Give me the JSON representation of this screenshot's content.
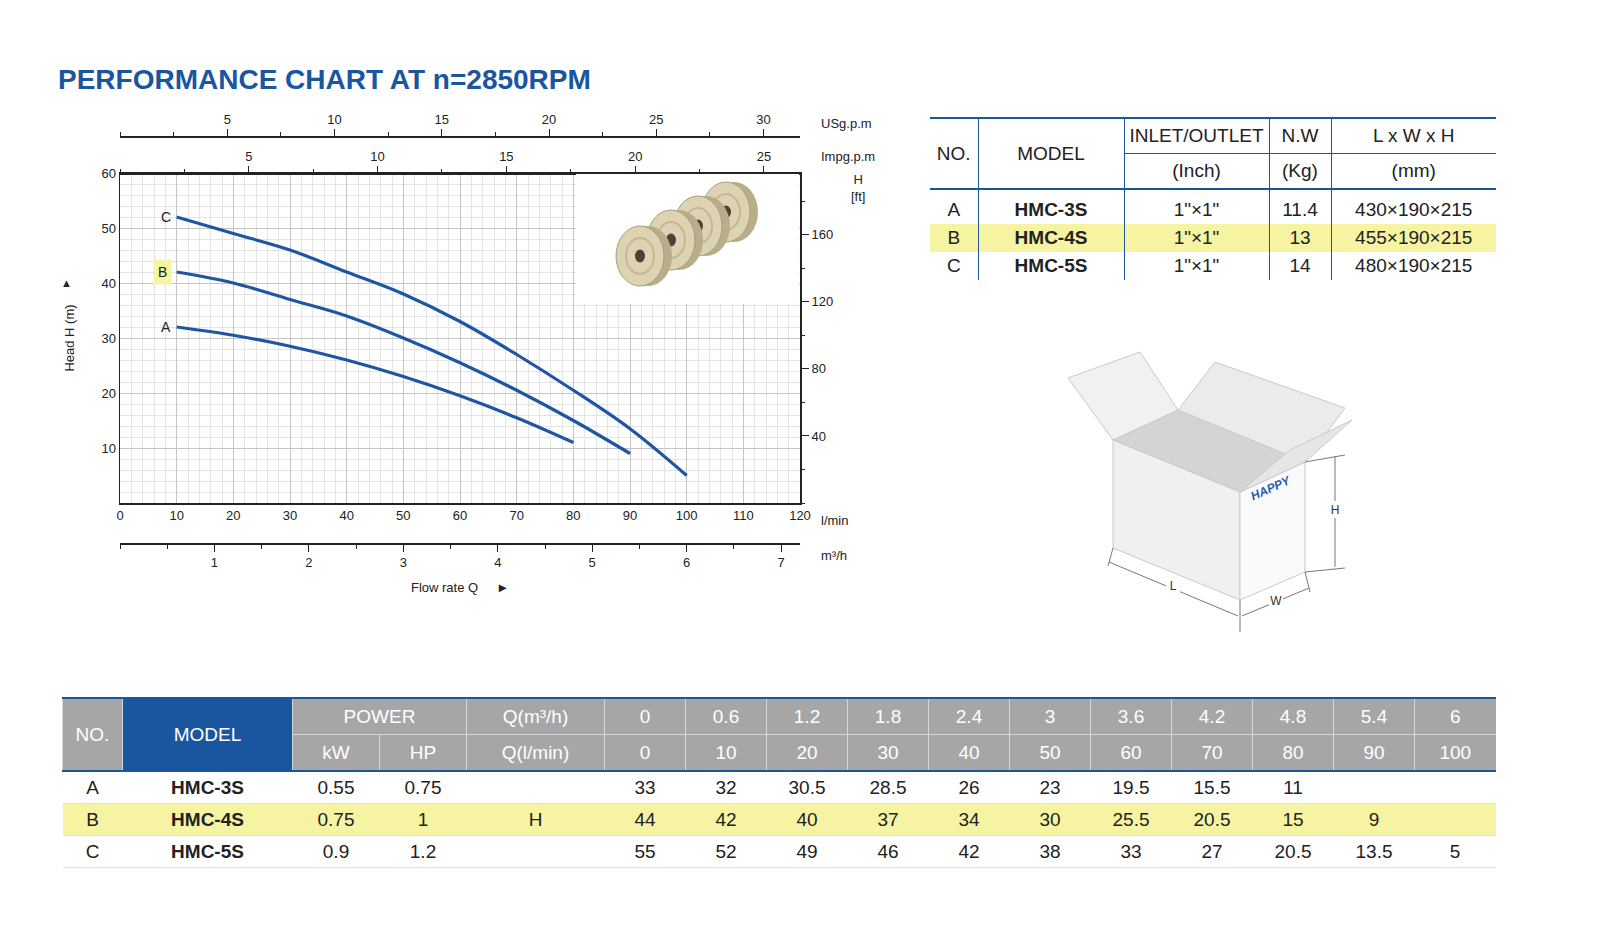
{
  "chart_data": {
    "type": "line",
    "title": "PERFORMANCE CHART AT n=2850RPM",
    "x_label": "Flow rate Q",
    "x_label_arrow": "►",
    "x_unit": "l/min",
    "y_label": "Head H (m)",
    "y_label_arrow": "▲",
    "x": [
      10,
      20,
      30,
      40,
      50,
      60,
      70,
      80,
      90,
      100
    ],
    "series": [
      {
        "name": "A",
        "color": "#1f56a3",
        "values": [
          32,
          30.5,
          28.5,
          26,
          23,
          19.5,
          15.5,
          11,
          null,
          null
        ]
      },
      {
        "name": "B",
        "color": "#1f56a3",
        "values": [
          42,
          40,
          37,
          34,
          30,
          25.5,
          20.5,
          15,
          9,
          null
        ]
      },
      {
        "name": "C",
        "color": "#1f56a3",
        "values": [
          52,
          49,
          46,
          42,
          38,
          33,
          27,
          20.5,
          13.5,
          5
        ]
      }
    ],
    "xlim": [
      0,
      120
    ],
    "xticks": [
      0,
      10,
      20,
      30,
      40,
      50,
      60,
      70,
      80,
      90,
      100,
      110,
      120
    ],
    "ylim": [
      0,
      60
    ],
    "yticks": [
      10,
      20,
      30,
      40,
      50,
      60
    ],
    "y2label": "H [ft]",
    "y2lim": [
      0,
      196.85
    ],
    "y2ticks": [
      40,
      80,
      120,
      160
    ],
    "x2label": "USg.p.m",
    "x2lim": [
      0,
      31.7
    ],
    "x2ticks": [
      5,
      10,
      15,
      20,
      25,
      30
    ],
    "x3label": "Impg.p.m",
    "x3lim": [
      0,
      26.4
    ],
    "x3ticks": [
      5,
      10,
      15,
      20,
      25
    ],
    "x4label": "m³/h",
    "x4lim": [
      0,
      7.2
    ],
    "x4ticks": [
      1,
      2,
      3,
      4,
      5,
      6,
      7
    ],
    "grid": true,
    "marker": "none",
    "line_style": "solid"
  },
  "highlight": "B",
  "spec_table": {
    "columns": [
      {
        "title": "NO."
      },
      {
        "title": "MODEL"
      },
      {
        "title": "INLET/OUTLET",
        "unit": "(Inch)"
      },
      {
        "title": "N.W",
        "unit": "(Kg)"
      },
      {
        "title": "L x W x H",
        "unit": "(mm)"
      }
    ],
    "rows": [
      [
        "A",
        "HMC-3S",
        "1\"×1\"",
        11.4,
        "430×190×215"
      ],
      [
        "B",
        "HMC-4S",
        "1\"×1\"",
        13,
        "455×190×215"
      ],
      [
        "C",
        "HMC-5S",
        "1\"×1\"",
        14,
        "480×190×215"
      ]
    ]
  },
  "package": {
    "brand": "HAPPY",
    "length": "L",
    "width": "W",
    "height": "H"
  },
  "performance_table": {
    "header": {
      "no": "NO.",
      "model": "MODEL",
      "power": "POWER",
      "power_units": [
        "kW",
        "HP"
      ],
      "q_m3h_label": "Q(m³/h)",
      "q_lmin_label": "Q(l/min)"
    },
    "q_m3h": [
      0,
      0.6,
      1.2,
      1.8,
      2.4,
      3,
      3.6,
      4.2,
      4.8,
      5.4,
      6
    ],
    "q_lmin": [
      0,
      10,
      20,
      30,
      40,
      50,
      60,
      70,
      80,
      90,
      100
    ],
    "rows": [
      {
        "no": "A",
        "model": "HMC-3S",
        "kw": 0.55,
        "hp": 0.75,
        "quantity": null,
        "head": [
          33,
          32,
          30.5,
          28.5,
          26,
          23,
          19.5,
          15.5,
          11,
          null,
          null
        ]
      },
      {
        "no": "B",
        "model": "HMC-4S",
        "kw": 0.75,
        "hp": 1,
        "quantity": "H",
        "head": [
          44,
          42,
          40,
          37,
          34,
          30,
          25.5,
          20.5,
          15,
          9,
          null
        ]
      },
      {
        "no": "C",
        "model": "HMC-5S",
        "kw": 0.9,
        "hp": 1.2,
        "quantity": null,
        "head": [
          55,
          52,
          49,
          46,
          42,
          38,
          33,
          27,
          20.5,
          13.5,
          5
        ]
      }
    ]
  }
}
